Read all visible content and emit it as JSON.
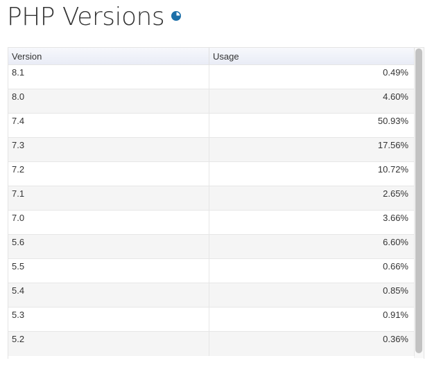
{
  "title": "PHP Versions",
  "title_icon": "pie-chart-icon",
  "accent": "#1b6fa8",
  "columns": [
    "Version",
    "Usage"
  ],
  "rows": [
    [
      "8.1",
      "0.49%"
    ],
    [
      "8.0",
      "4.60%"
    ],
    [
      "7.4",
      "50.93%"
    ],
    [
      "7.3",
      "17.56%"
    ],
    [
      "7.2",
      "10.72%"
    ],
    [
      "7.1",
      "2.65%"
    ],
    [
      "7.0",
      "3.66%"
    ],
    [
      "5.6",
      "6.60%"
    ],
    [
      "5.5",
      "0.66%"
    ],
    [
      "5.4",
      "0.85%"
    ],
    [
      "5.3",
      "0.91%"
    ],
    [
      "5.2",
      "0.36%"
    ]
  ]
}
